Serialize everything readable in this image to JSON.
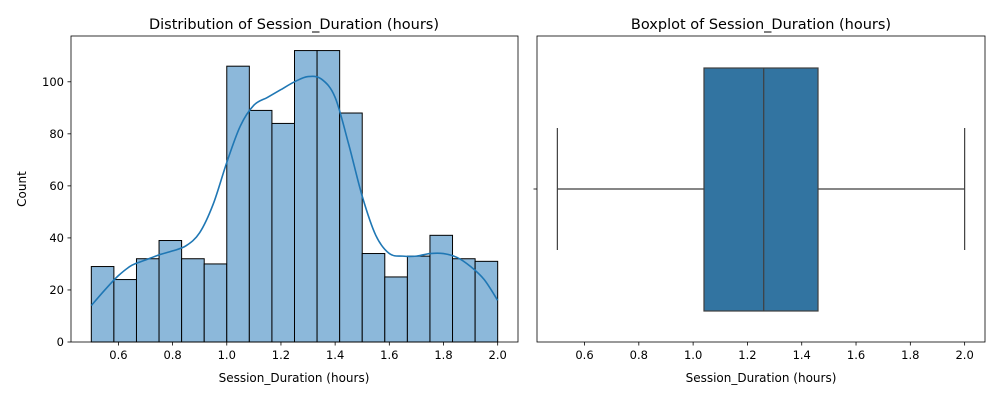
{
  "chart_data": [
    {
      "type": "bar",
      "title": "Distribution of Session_Duration (hours)",
      "xlabel": "Session_Duration (hours)",
      "ylabel": "Count",
      "xlim": [
        0.425,
        2.075
      ],
      "ylim": [
        0,
        117.6
      ],
      "xticks": [
        0.6,
        0.8,
        1.0,
        1.2,
        1.4,
        1.6,
        1.8,
        2.0
      ],
      "xtick_labels": [
        "0.6",
        "0.8",
        "1.0",
        "1.2",
        "1.4",
        "1.6",
        "1.8",
        "2.0"
      ],
      "yticks": [
        0,
        20,
        40,
        60,
        80,
        100
      ],
      "ytick_labels": [
        "0",
        "20",
        "40",
        "60",
        "80",
        "100"
      ],
      "bin_edges": [
        0.5,
        0.5833,
        0.6667,
        0.75,
        0.8333,
        0.9167,
        1.0,
        1.0833,
        1.1667,
        1.25,
        1.3333,
        1.4167,
        1.5,
        1.5833,
        1.6667,
        1.75,
        1.8333,
        1.9167,
        2.0
      ],
      "values": [
        29,
        24,
        32,
        39,
        32,
        30,
        106,
        89,
        84,
        112,
        112,
        88,
        34,
        25,
        33,
        41,
        32,
        31
      ],
      "kde": {
        "x": [
          0.5,
          0.55,
          0.6,
          0.65,
          0.7,
          0.75,
          0.8,
          0.85,
          0.9,
          0.95,
          1.0,
          1.05,
          1.1,
          1.15,
          1.2,
          1.25,
          1.3,
          1.35,
          1.4,
          1.45,
          1.5,
          1.55,
          1.6,
          1.65,
          1.7,
          1.75,
          1.8,
          1.85,
          1.9,
          1.95,
          2.0
        ],
        "y": [
          14,
          20,
          25.5,
          29.5,
          31.5,
          33.5,
          35,
          37,
          42,
          53,
          69,
          83,
          91,
          94,
          97,
          100,
          102,
          101,
          94,
          76,
          56,
          41,
          34,
          33,
          33,
          34,
          34,
          32.5,
          29,
          24,
          16
        ]
      },
      "colors": {
        "bar_fill": "#8cb8da",
        "bar_edge": "#000000",
        "kde_line": "#1f77b4"
      },
      "grid": false
    },
    {
      "type": "boxplot",
      "title": "Boxplot of Session_Duration (hours)",
      "xlabel": "Session_Duration (hours)",
      "xlim": [
        0.425,
        2.075
      ],
      "xticks": [
        0.6,
        0.8,
        1.0,
        1.2,
        1.4,
        1.6,
        1.8,
        2.0
      ],
      "xtick_labels": [
        "0.6",
        "0.8",
        "1.0",
        "1.2",
        "1.4",
        "1.6",
        "1.8",
        "2.0"
      ],
      "whisker_low": 0.5,
      "q1": 1.04,
      "median": 1.26,
      "q3": 1.46,
      "whisker_high": 2.0,
      "colors": {
        "box_fill": "#3274a1",
        "line": "#3f3f3f"
      },
      "grid": false
    }
  ]
}
